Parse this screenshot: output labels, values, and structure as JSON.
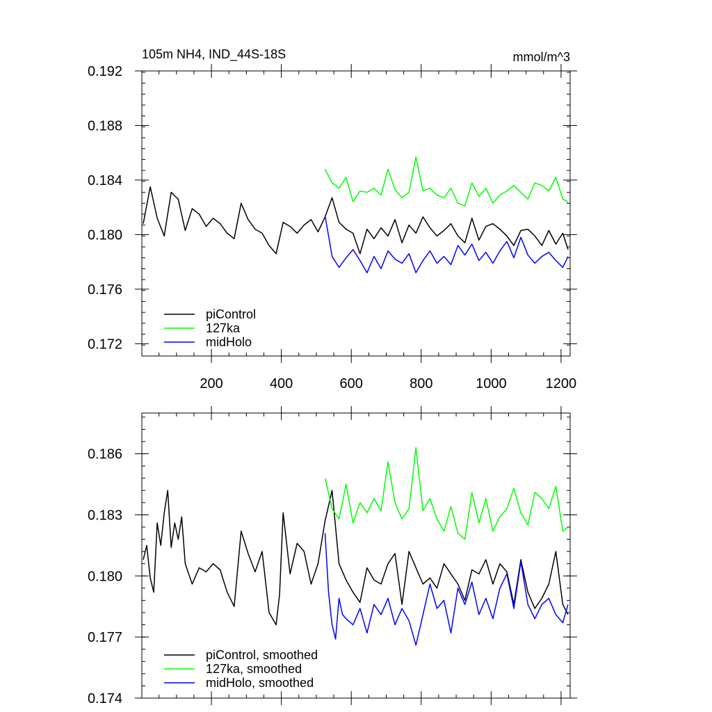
{
  "chart_data": [
    {
      "type": "line",
      "title": "105m NH4, IND_44S-18S",
      "units": "mmol/m^3",
      "xlim": [
        1,
        1226
      ],
      "ylim": [
        0.1711,
        0.192
      ],
      "x_ticks": [
        200,
        400,
        600,
        800,
        1000,
        1200
      ],
      "x_tick_labels": [
        "200",
        "400",
        "600",
        "800",
        "1000",
        "1200"
      ],
      "y_ticks": [
        0.172,
        0.176,
        0.18,
        0.184,
        0.188,
        0.192
      ],
      "y_tick_labels": [
        "0.172",
        "0.176",
        "0.180",
        "0.184",
        "0.188",
        "0.192"
      ],
      "legend": [
        "piControl",
        "127ka",
        "midHolo"
      ],
      "series": [
        {
          "name": "piControl",
          "color": "#000000",
          "x": [
            5,
            25,
            45,
            65,
            85,
            105,
            125,
            145,
            165,
            185,
            205,
            225,
            245,
            265,
            285,
            305,
            325,
            345,
            365,
            385,
            405,
            425,
            445,
            465,
            485,
            505,
            525,
            545,
            565,
            585,
            605,
            625,
            645,
            665,
            685,
            705,
            725,
            745,
            765,
            785,
            805,
            825,
            845,
            865,
            885,
            905,
            925,
            945,
            965,
            985,
            1005,
            1025,
            1045,
            1065,
            1085,
            1105,
            1125,
            1145,
            1165,
            1185,
            1205,
            1220
          ],
          "y": [
            0.1808,
            0.1835,
            0.1812,
            0.1799,
            0.1831,
            0.1826,
            0.1803,
            0.1819,
            0.1815,
            0.1806,
            0.1812,
            0.1808,
            0.1801,
            0.1797,
            0.1823,
            0.1811,
            0.1804,
            0.1801,
            0.1792,
            0.1786,
            0.1809,
            0.1806,
            0.1801,
            0.1807,
            0.1811,
            0.1802,
            0.1813,
            0.1827,
            0.1809,
            0.1804,
            0.1801,
            0.1786,
            0.1804,
            0.1797,
            0.1805,
            0.1799,
            0.1811,
            0.1794,
            0.1807,
            0.1801,
            0.1813,
            0.1805,
            0.1799,
            0.1803,
            0.1808,
            0.1799,
            0.1794,
            0.1812,
            0.1796,
            0.1806,
            0.1808,
            0.1804,
            0.1799,
            0.1792,
            0.1803,
            0.1804,
            0.1799,
            0.1792,
            0.1803,
            0.1793,
            0.1801,
            0.1789
          ]
        },
        {
          "name": "127ka",
          "color": "#00ff00",
          "x": [
            525,
            545,
            565,
            585,
            605,
            625,
            645,
            665,
            685,
            705,
            725,
            745,
            765,
            785,
            805,
            825,
            845,
            865,
            885,
            905,
            925,
            945,
            965,
            985,
            1005,
            1025,
            1045,
            1065,
            1085,
            1105,
            1125,
            1145,
            1165,
            1185,
            1205,
            1220
          ],
          "y": [
            0.1848,
            0.1838,
            0.1834,
            0.1842,
            0.1824,
            0.1832,
            0.1831,
            0.1834,
            0.1829,
            0.1848,
            0.1833,
            0.1827,
            0.1831,
            0.1857,
            0.1832,
            0.1834,
            0.1829,
            0.1827,
            0.1834,
            0.1823,
            0.1821,
            0.1838,
            0.1828,
            0.1834,
            0.1823,
            0.1829,
            0.1832,
            0.1836,
            0.1831,
            0.1826,
            0.1838,
            0.1836,
            0.1832,
            0.1842,
            0.1826,
            0.1824
          ]
        },
        {
          "name": "midHolo",
          "color": "#0000ff",
          "x": [
            525,
            545,
            565,
            585,
            605,
            625,
            645,
            665,
            685,
            705,
            725,
            745,
            765,
            785,
            805,
            825,
            845,
            865,
            885,
            905,
            925,
            945,
            965,
            985,
            1005,
            1025,
            1045,
            1065,
            1085,
            1105,
            1125,
            1145,
            1165,
            1185,
            1205,
            1220
          ],
          "y": [
            0.1814,
            0.1784,
            0.1776,
            0.1783,
            0.1789,
            0.1781,
            0.1772,
            0.1784,
            0.1775,
            0.1788,
            0.1782,
            0.1779,
            0.1786,
            0.1772,
            0.1781,
            0.1788,
            0.1779,
            0.1784,
            0.1778,
            0.1792,
            0.1785,
            0.1793,
            0.1781,
            0.1787,
            0.1779,
            0.1788,
            0.1795,
            0.1783,
            0.1798,
            0.1785,
            0.1779,
            0.1784,
            0.1787,
            0.1781,
            0.1776,
            0.1784
          ]
        }
      ]
    },
    {
      "type": "line",
      "title": "",
      "xlim": [
        1,
        1226
      ],
      "ylim": [
        0.174,
        0.188
      ],
      "x_ticks": [
        200,
        400,
        600,
        800,
        1000,
        1200
      ],
      "x_tick_labels": [],
      "y_ticks": [
        0.174,
        0.177,
        0.18,
        0.183,
        0.186
      ],
      "y_tick_labels": [
        "0.174",
        "0.177",
        "0.180",
        "0.183",
        "0.186"
      ],
      "legend": [
        "piControl, smoothed",
        "127ka, smoothed",
        "midHolo, smoothed"
      ],
      "series": [
        {
          "name": "piControl, smoothed",
          "color": "#000000",
          "x": [
            5,
            15,
            25,
            35,
            45,
            55,
            65,
            75,
            85,
            95,
            105,
            115,
            125,
            135,
            145,
            165,
            185,
            205,
            225,
            245,
            265,
            285,
            305,
            325,
            345,
            365,
            385,
            395,
            405,
            425,
            445,
            465,
            485,
            505,
            525,
            545,
            565,
            585,
            605,
            625,
            645,
            665,
            685,
            705,
            725,
            745,
            765,
            785,
            805,
            825,
            845,
            865,
            885,
            905,
            925,
            945,
            965,
            985,
            1005,
            1025,
            1045,
            1065,
            1085,
            1105,
            1125,
            1145,
            1165,
            1185,
            1205,
            1220
          ],
          "y": [
            0.1808,
            0.1815,
            0.1799,
            0.1792,
            0.1826,
            0.1815,
            0.1831,
            0.1842,
            0.1814,
            0.1826,
            0.1818,
            0.1829,
            0.1806,
            0.1801,
            0.1796,
            0.1804,
            0.1802,
            0.1806,
            0.1803,
            0.1792,
            0.1785,
            0.1822,
            0.1811,
            0.1802,
            0.1812,
            0.1782,
            0.1776,
            0.1791,
            0.1831,
            0.1801,
            0.1816,
            0.1812,
            0.1796,
            0.1806,
            0.1827,
            0.1842,
            0.1806,
            0.1798,
            0.1792,
            0.1787,
            0.1804,
            0.1798,
            0.1796,
            0.1806,
            0.1811,
            0.1786,
            0.1812,
            0.1804,
            0.1796,
            0.1799,
            0.1794,
            0.1806,
            0.1801,
            0.1796,
            0.1788,
            0.1803,
            0.1801,
            0.1808,
            0.1796,
            0.1806,
            0.1802,
            0.1786,
            0.1808,
            0.1792,
            0.1784,
            0.1789,
            0.1796,
            0.1812,
            0.1786,
            0.1781
          ]
        },
        {
          "name": "127ka, smoothed",
          "color": "#00ff00",
          "x": [
            525,
            545,
            565,
            585,
            605,
            625,
            645,
            665,
            685,
            705,
            725,
            745,
            765,
            785,
            805,
            825,
            845,
            865,
            885,
            905,
            925,
            945,
            965,
            985,
            1005,
            1025,
            1045,
            1065,
            1085,
            1105,
            1125,
            1145,
            1165,
            1185,
            1205,
            1220
          ],
          "y": [
            0.1848,
            0.1833,
            0.1828,
            0.1845,
            0.1826,
            0.1836,
            0.1831,
            0.1838,
            0.1832,
            0.1856,
            0.1836,
            0.1828,
            0.1833,
            0.1863,
            0.1832,
            0.1838,
            0.1828,
            0.1822,
            0.1834,
            0.1821,
            0.1818,
            0.1841,
            0.1826,
            0.1838,
            0.1822,
            0.1829,
            0.1833,
            0.1843,
            0.1831,
            0.1825,
            0.1841,
            0.1838,
            0.1833,
            0.1844,
            0.1822,
            0.1824
          ]
        },
        {
          "name": "midHolo, smoothed",
          "color": "#0000ff",
          "x": [
            525,
            535,
            545,
            555,
            565,
            575,
            585,
            605,
            625,
            645,
            665,
            685,
            705,
            725,
            745,
            765,
            785,
            805,
            825,
            845,
            865,
            885,
            905,
            925,
            945,
            965,
            985,
            1005,
            1025,
            1045,
            1065,
            1085,
            1105,
            1125,
            1145,
            1165,
            1185,
            1205,
            1220
          ],
          "y": [
            0.1821,
            0.1792,
            0.1776,
            0.1769,
            0.1789,
            0.1781,
            0.1779,
            0.1776,
            0.1784,
            0.1772,
            0.1786,
            0.1781,
            0.1789,
            0.1776,
            0.1784,
            0.1778,
            0.1766,
            0.1781,
            0.1796,
            0.1784,
            0.1788,
            0.1772,
            0.1794,
            0.1786,
            0.1797,
            0.1781,
            0.1789,
            0.1779,
            0.1794,
            0.1801,
            0.1784,
            0.1807,
            0.1786,
            0.1779,
            0.1786,
            0.1789,
            0.1781,
            0.1777,
            0.1786
          ]
        }
      ]
    }
  ]
}
